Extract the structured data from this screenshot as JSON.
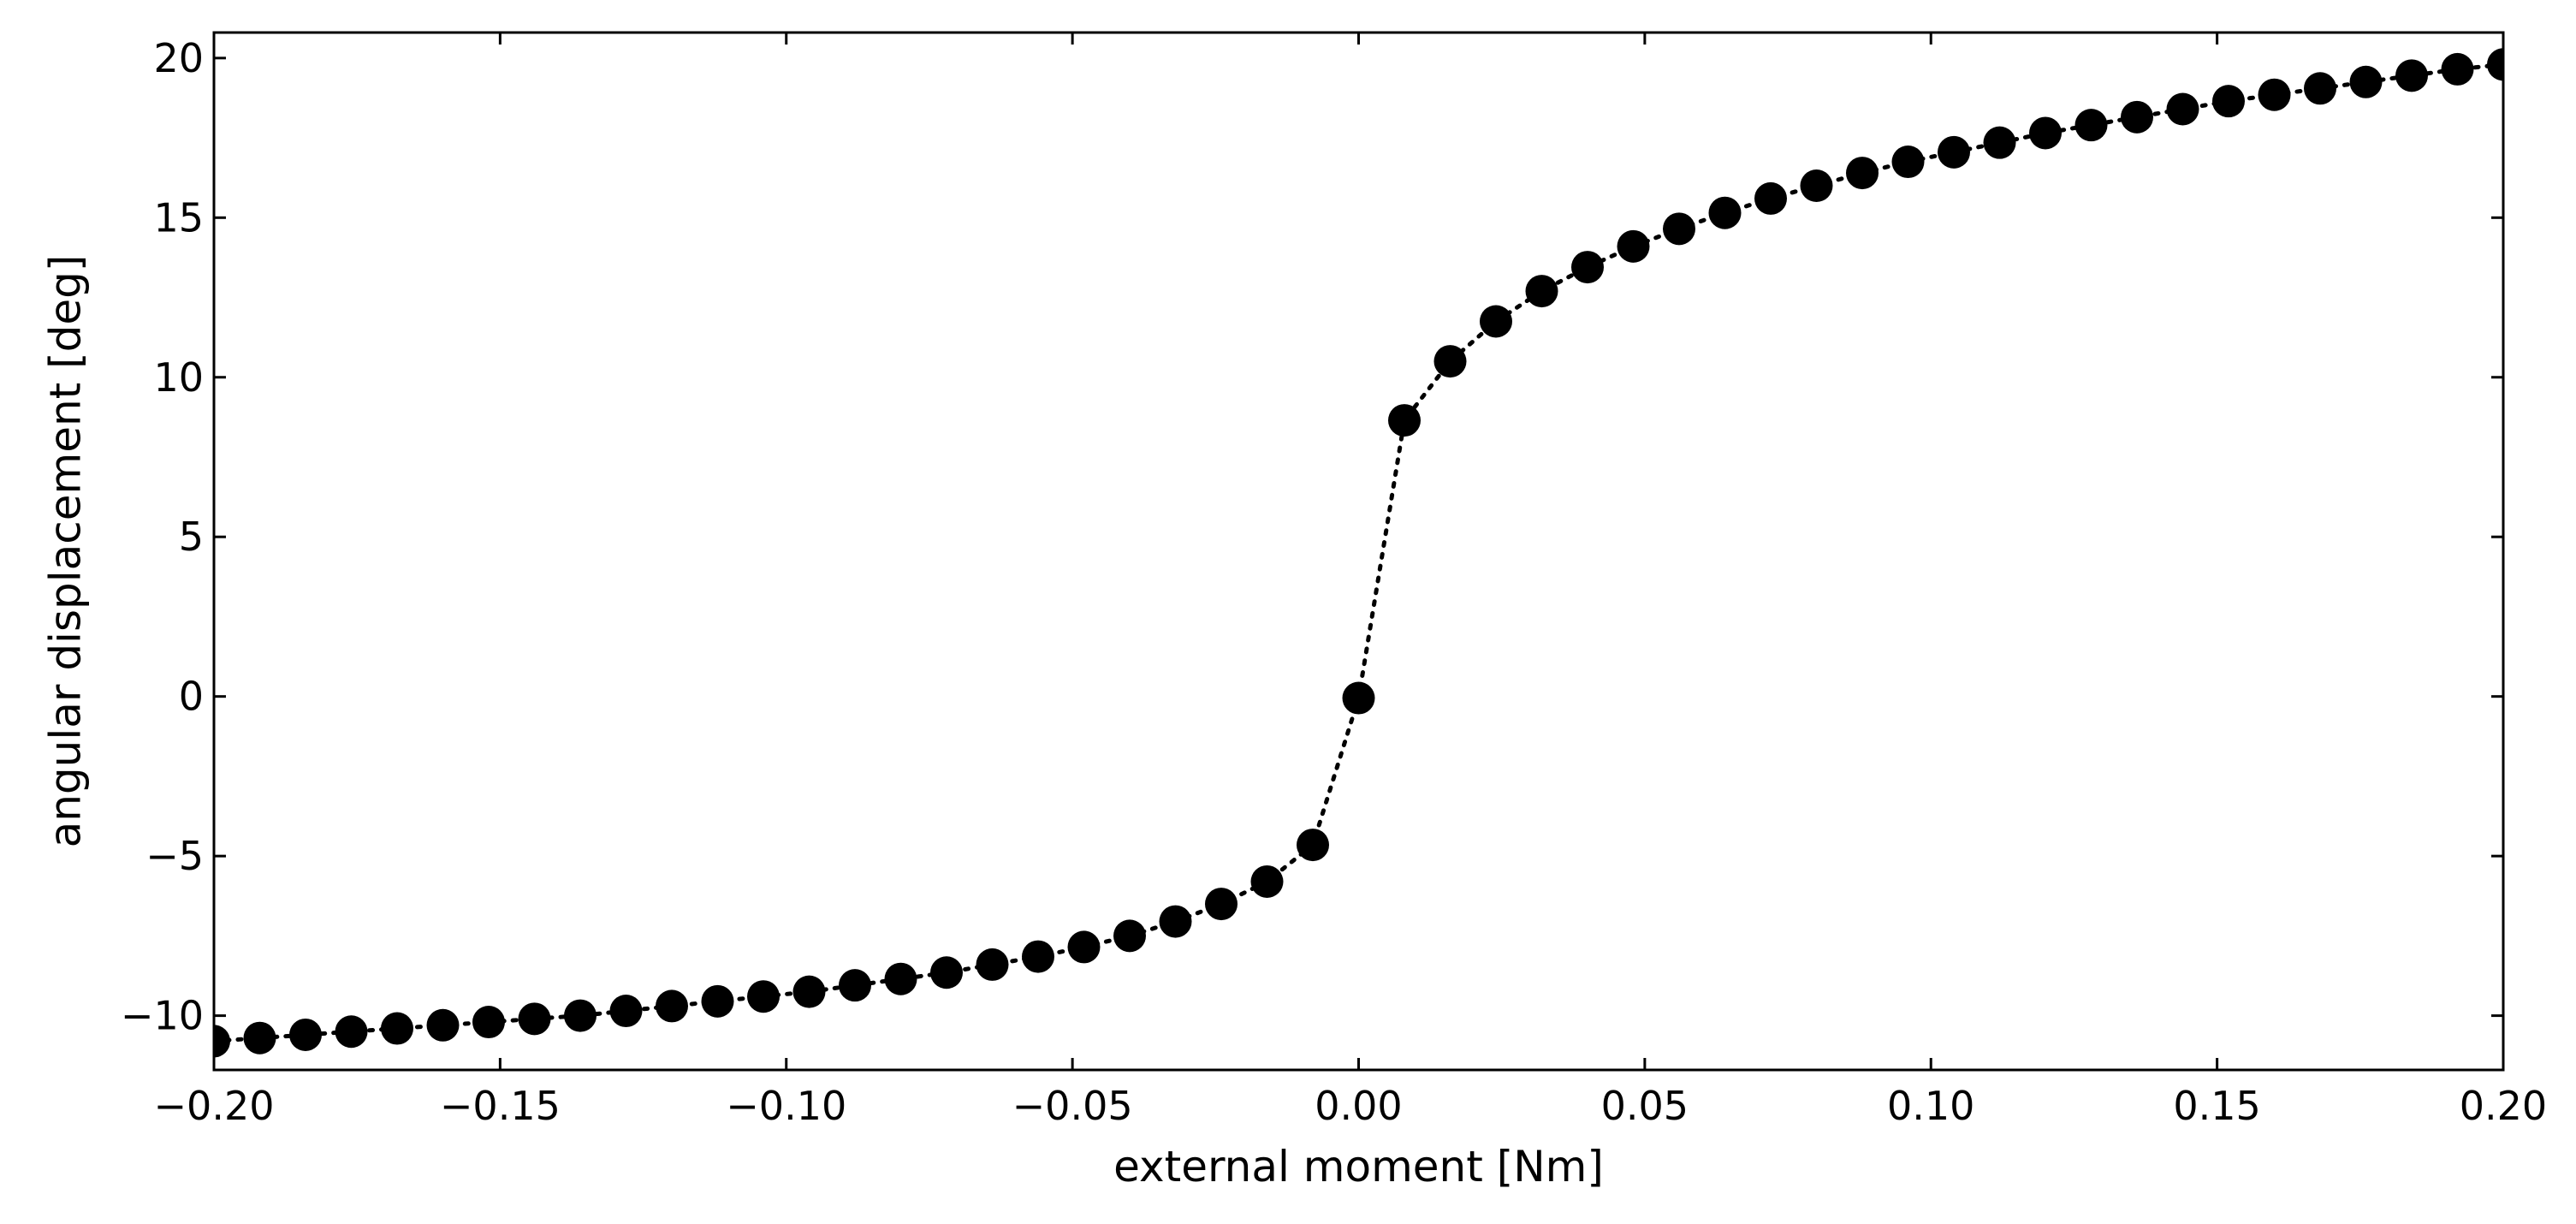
{
  "chart_data": {
    "type": "scatter",
    "title": "",
    "xlabel": "external moment [Nm]",
    "ylabel": "angular displacement [deg]",
    "xlim": [
      -0.2,
      0.2
    ],
    "ylim": [
      -11.7,
      20.8
    ],
    "xticks": [
      -0.2,
      -0.15,
      -0.1,
      -0.05,
      0.0,
      0.05,
      0.1,
      0.15,
      0.2
    ],
    "xtick_labels": [
      "−0.20",
      "−0.15",
      "−0.10",
      "−0.05",
      "0.00",
      "0.05",
      "0.10",
      "0.15",
      "0.20"
    ],
    "yticks": [
      -10,
      -5,
      0,
      5,
      10,
      15,
      20
    ],
    "ytick_labels": [
      "−10",
      "−5",
      "0",
      "5",
      "10",
      "15",
      "20"
    ],
    "grid": false,
    "legend": "none",
    "marker_color": "#000000",
    "line_style": "dotted",
    "series": [
      {
        "x": [
          -0.2,
          -0.192,
          -0.184,
          -0.176,
          -0.168,
          -0.16,
          -0.152,
          -0.144,
          -0.136,
          -0.128,
          -0.12,
          -0.112,
          -0.104,
          -0.096,
          -0.088,
          -0.08,
          -0.072,
          -0.064,
          -0.056,
          -0.048,
          -0.04,
          -0.032,
          -0.024,
          -0.016,
          -0.008,
          0.0,
          0.008,
          0.016,
          0.024,
          0.032,
          0.04,
          0.048,
          0.056,
          0.064,
          0.072,
          0.08,
          0.088,
          0.096,
          0.104,
          0.112,
          0.12,
          0.128,
          0.136,
          0.144,
          0.152,
          0.16,
          0.168,
          0.176,
          0.184,
          0.192,
          0.2
        ],
        "y": [
          -10.8,
          -10.7,
          -10.6,
          -10.5,
          -10.4,
          -10.3,
          -10.2,
          -10.1,
          -10.0,
          -9.85,
          -9.7,
          -9.55,
          -9.4,
          -9.25,
          -9.05,
          -8.85,
          -8.65,
          -8.4,
          -8.15,
          -7.85,
          -7.5,
          -7.05,
          -6.5,
          -5.8,
          -4.65,
          -0.05,
          8.65,
          10.5,
          11.75,
          12.7,
          13.45,
          14.1,
          14.65,
          15.15,
          15.6,
          16.0,
          16.4,
          16.75,
          17.05,
          17.35,
          17.65,
          17.9,
          18.15,
          18.4,
          18.65,
          18.85,
          19.05,
          19.25,
          19.45,
          19.65,
          19.8
        ]
      }
    ]
  }
}
